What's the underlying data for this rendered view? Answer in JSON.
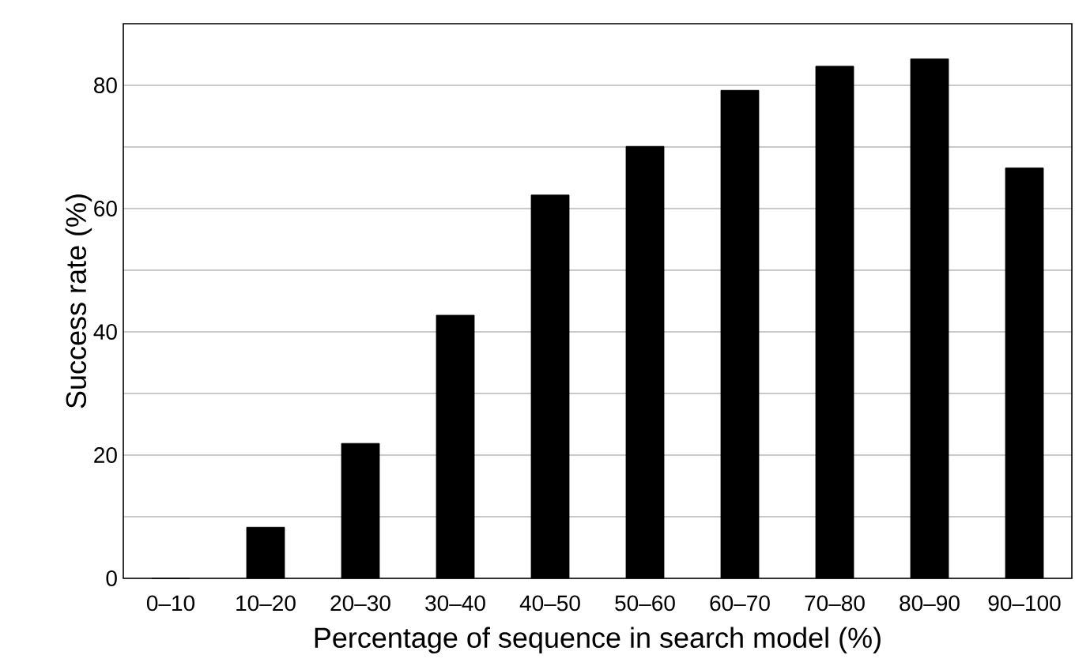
{
  "chart_data": {
    "type": "bar",
    "xlabel": "Percentage of sequence in search model (%)",
    "ylabel": "Success rate (%)",
    "categories": [
      "0–10",
      "10–20",
      "20–30",
      "30–40",
      "40–50",
      "50–60",
      "60–70",
      "70–80",
      "80–90",
      "90–100"
    ],
    "values": [
      0,
      8.3,
      21.9,
      42.7,
      62.2,
      70.1,
      79.2,
      83.1,
      84.3,
      66.6
    ],
    "color": "#000000",
    "ylim": [
      0,
      90
    ],
    "yticks": [
      0,
      {
        "value": 10,
        "label": null
      },
      20,
      {
        "value": 30,
        "label": null
      },
      40,
      {
        "value": 50,
        "label": null
      },
      60,
      {
        "value": 70,
        "label": null
      },
      80
    ],
    "grid": "y"
  }
}
